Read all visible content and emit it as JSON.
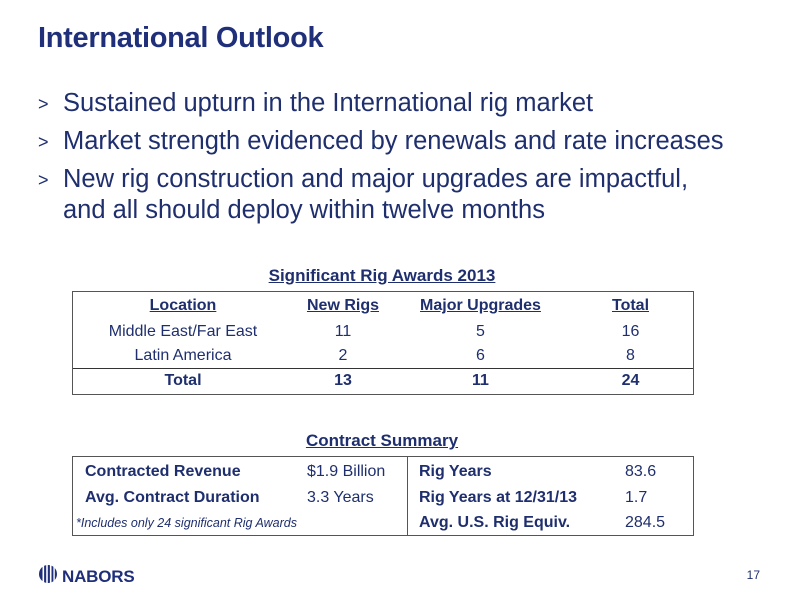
{
  "slide": {
    "title": "International Outlook",
    "page_number": "17"
  },
  "bullets": [
    {
      "marker": ">",
      "lines": [
        "Sustained upturn in the International rig market"
      ]
    },
    {
      "marker": ">",
      "lines": [
        "Market strength evidenced by renewals and rate increases"
      ]
    },
    {
      "marker": ">",
      "lines": [
        "New rig construction and major upgrades are impactful,",
        "and all should deploy within twelve months"
      ]
    }
  ],
  "awards": {
    "title": "Significant Rig Awards 2013",
    "headers": [
      "Location",
      "New Rigs",
      "Major Upgrades",
      "Total"
    ],
    "rows": [
      [
        "Middle East/Far East",
        "11",
        "5",
        "16"
      ],
      [
        "Latin America",
        "2",
        "6",
        "8"
      ]
    ],
    "total_row": [
      "Total",
      "13",
      "11",
      "24"
    ]
  },
  "contract": {
    "title": "Contract Summary",
    "left": [
      {
        "label": "Contracted Revenue",
        "value": "$1.9 Billion"
      },
      {
        "label": "Avg. Contract Duration",
        "value": "3.3 Years"
      }
    ],
    "note": "*Includes only 24 significant Rig Awards",
    "right": [
      {
        "label": "Rig Years",
        "value": "83.6"
      },
      {
        "label": "Rig Years at 12/31/13",
        "value": "1.7"
      },
      {
        "label": "Avg. U.S. Rig Equiv.",
        "value": "284.5"
      }
    ]
  },
  "logo": {
    "text": "NABORS",
    "icon": "nabors-stripes-icon",
    "color": "#1f2f7a"
  }
}
